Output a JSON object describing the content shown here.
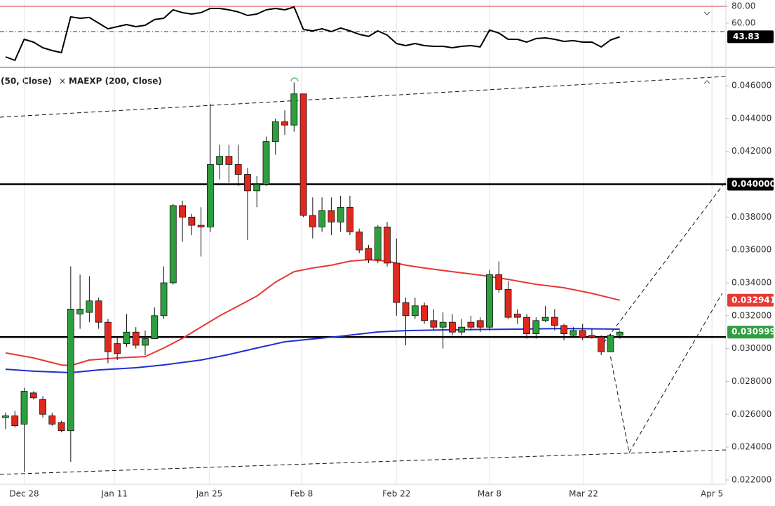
{
  "chart_data": [
    {
      "type": "line",
      "xlim": [
        -0.6,
        77.4
      ],
      "ylim": [
        8.3,
        87.5
      ],
      "yticks": [
        {
          "value": 80,
          "label": "80.00"
        },
        {
          "value": 60,
          "label": "60.00"
        }
      ],
      "levels": [
        {
          "value": 80,
          "color": "#e53935",
          "style": "solid"
        },
        {
          "value": 50,
          "color": "#333333",
          "style": "dashdot"
        }
      ],
      "series": [
        {
          "color": "#000000",
          "values": [
            20.0,
            15.8,
            40.8,
            37.5,
            30.8,
            27.5,
            25.0,
            67.5,
            65.8,
            66.7,
            60.0,
            53.3,
            55.8,
            58.3,
            55.8,
            57.5,
            64.2,
            65.8,
            75.8,
            72.5,
            70.8,
            72.5,
            77.5,
            77.5,
            75.8,
            73.3,
            69.2,
            70.8,
            75.8,
            77.5,
            75.8,
            79.2,
            52.5,
            50.8,
            53.3,
            50.0,
            54.2,
            50.8,
            46.7,
            44.2,
            50.8,
            45.8,
            35.8,
            33.3,
            35.8,
            33.3,
            32.5,
            32.5,
            30.8,
            32.5,
            33.3,
            31.7,
            51.7,
            48.3,
            40.8,
            40.8,
            37.5,
            41.7,
            42.5,
            40.8,
            38.3,
            39.2,
            37.5,
            37.5,
            31.7,
            40.0,
            43.83
          ]
        }
      ],
      "grid": true,
      "xticks": [
        2,
        11.7,
        21.9,
        31.8,
        42,
        52,
        62.1,
        75.9
      ]
    },
    {
      "type": "candlestick",
      "xlim": [
        -0.6,
        77.4
      ],
      "ylim": [
        0.02174,
        0.04707
      ],
      "xticks": [
        {
          "value": 2,
          "label": "Dec 28"
        },
        {
          "value": 11.7,
          "label": "Jan 11"
        },
        {
          "value": 21.9,
          "label": "Jan 25"
        },
        {
          "value": 31.8,
          "label": "Feb 8"
        },
        {
          "value": 42,
          "label": "Feb 22"
        },
        {
          "value": 52,
          "label": "Mar 8"
        },
        {
          "value": 62.1,
          "label": "Mar 22"
        },
        {
          "value": 75.9,
          "label": "Apr 5"
        }
      ],
      "yticks": [
        {
          "value": 0.022,
          "label": "0.022000"
        },
        {
          "value": 0.024,
          "label": "0.024000"
        },
        {
          "value": 0.026,
          "label": "0.026000"
        },
        {
          "value": 0.028,
          "label": "0.028000"
        },
        {
          "value": 0.03,
          "label": "0.030000"
        },
        {
          "value": 0.032,
          "label": "0.032000"
        },
        {
          "value": 0.034,
          "label": "0.034000"
        },
        {
          "value": 0.036,
          "label": "0.036000"
        },
        {
          "value": 0.038,
          "label": "0.038000"
        },
        {
          "value": 0.04,
          "label": "0.040000"
        },
        {
          "value": 0.042,
          "label": "0.042000"
        },
        {
          "value": 0.044,
          "label": "0.044000"
        },
        {
          "value": 0.046,
          "label": "0.046000"
        }
      ],
      "grid": true,
      "up_color": "#2e9e3e",
      "down_color": "#e0281e",
      "open": [
        0.0258,
        0.0259,
        0.0254,
        0.0273,
        0.0269,
        0.0259,
        0.0255,
        0.025,
        0.0321,
        0.0322,
        0.0329,
        0.0316,
        0.0303,
        0.0303,
        0.031,
        0.0302,
        0.0306,
        0.032,
        0.034,
        0.0387,
        0.038,
        0.0375,
        0.0374,
        0.0412,
        0.0417,
        0.0412,
        0.0406,
        0.0396,
        0.04,
        0.0426,
        0.0438,
        0.0436,
        0.0455,
        0.0381,
        0.0374,
        0.0384,
        0.0377,
        0.0386,
        0.0371,
        0.0361,
        0.0354,
        0.0374,
        0.0352,
        0.0328,
        0.032,
        0.0326,
        0.0317,
        0.0313,
        0.0316,
        0.031,
        0.0316,
        0.0317,
        0.0313,
        0.0345,
        0.0336,
        0.0321,
        0.0319,
        0.0309,
        0.0317,
        0.0319,
        0.0314,
        0.0308,
        0.0311,
        0.0308,
        0.0307,
        0.0298,
        0.0308
      ],
      "high": [
        0.0261,
        0.0262,
        0.0276,
        0.0274,
        0.0271,
        0.0261,
        0.0256,
        0.035,
        0.0345,
        0.0344,
        0.0331,
        0.0318,
        0.0307,
        0.0321,
        0.0313,
        0.0311,
        0.0325,
        0.035,
        0.0388,
        0.039,
        0.0382,
        0.0386,
        0.0449,
        0.0424,
        0.0424,
        0.0424,
        0.041,
        0.0405,
        0.0429,
        0.044,
        0.0445,
        0.0462,
        0.0455,
        0.0392,
        0.0392,
        0.0392,
        0.0393,
        0.0393,
        0.0373,
        0.0363,
        0.0375,
        0.0377,
        0.0367,
        0.0331,
        0.0331,
        0.0328,
        0.0324,
        0.0322,
        0.0321,
        0.0318,
        0.032,
        0.0319,
        0.0348,
        0.0353,
        0.0341,
        0.0324,
        0.0321,
        0.0319,
        0.0326,
        0.0324,
        0.0315,
        0.0313,
        0.0315,
        0.0312,
        0.0308,
        0.0309,
        0.0311
      ],
      "low": [
        0.0251,
        0.0252,
        0.0225,
        0.0269,
        0.0258,
        0.0253,
        0.0249,
        0.0231,
        0.0312,
        0.0316,
        0.0312,
        0.0291,
        0.0293,
        0.0301,
        0.03,
        0.0296,
        0.0306,
        0.0318,
        0.0339,
        0.0365,
        0.0369,
        0.0356,
        0.0371,
        0.0403,
        0.0401,
        0.0399,
        0.0366,
        0.0386,
        0.0399,
        0.0418,
        0.043,
        0.0432,
        0.038,
        0.0367,
        0.0371,
        0.0369,
        0.0371,
        0.0369,
        0.0358,
        0.0352,
        0.0352,
        0.035,
        0.032,
        0.0302,
        0.0318,
        0.0315,
        0.0311,
        0.03,
        0.0308,
        0.0308,
        0.0311,
        0.031,
        0.0311,
        0.0334,
        0.0318,
        0.0315,
        0.0306,
        0.0306,
        0.0316,
        0.0311,
        0.0305,
        0.0307,
        0.0305,
        0.0306,
        0.0296,
        0.0298,
        0.0306
      ],
      "close": [
        0.0259,
        0.0253,
        0.0274,
        0.027,
        0.026,
        0.0254,
        0.025,
        0.0324,
        0.0324,
        0.0329,
        0.0316,
        0.0298,
        0.0297,
        0.031,
        0.0302,
        0.0306,
        0.032,
        0.034,
        0.0387,
        0.038,
        0.0375,
        0.0374,
        0.0412,
        0.0417,
        0.0412,
        0.0406,
        0.0396,
        0.04,
        0.0426,
        0.0438,
        0.0436,
        0.0455,
        0.0381,
        0.0374,
        0.0384,
        0.0377,
        0.0386,
        0.0371,
        0.036,
        0.0354,
        0.0374,
        0.0352,
        0.0328,
        0.032,
        0.0326,
        0.0317,
        0.0313,
        0.0316,
        0.031,
        0.0313,
        0.0313,
        0.0313,
        0.0345,
        0.0336,
        0.0319,
        0.0319,
        0.0309,
        0.0317,
        0.0319,
        0.0314,
        0.0309,
        0.0311,
        0.0307,
        0.0307,
        0.0298,
        0.0308,
        0.030999
      ],
      "last_label": "0.030999",
      "last_color": "#2e9e3e",
      "series": [
        {
          "name": "(50, Close)",
          "color": "#e53935",
          "x": [
            0,
            3,
            6,
            7,
            9,
            12,
            15,
            17,
            19,
            21,
            23,
            25,
            27,
            29,
            31,
            33,
            35,
            37,
            39,
            41,
            43,
            45,
            48,
            51,
            54,
            57,
            60,
            63,
            66
          ],
          "values": [
            0.02973,
            0.02943,
            0.029,
            0.02896,
            0.0293,
            0.02943,
            0.02951,
            0.03003,
            0.03062,
            0.03131,
            0.03199,
            0.03259,
            0.03319,
            0.03404,
            0.03468,
            0.0349,
            0.03507,
            0.03532,
            0.03541,
            0.03532,
            0.03507,
            0.0349,
            0.03468,
            0.03447,
            0.03421,
            0.03391,
            0.0337,
            0.03336,
            0.032941
          ],
          "last_label": "0.032941"
        },
        {
          "name": "MAEXP (200, Close)",
          "color": "#1f2fd0",
          "x": [
            0,
            3,
            7,
            10,
            14,
            17,
            21,
            24,
            27,
            30,
            33,
            36,
            40,
            43,
            48,
            55,
            60,
            66
          ],
          "values": [
            0.02874,
            0.02862,
            0.02853,
            0.0287,
            0.02883,
            0.029,
            0.0293,
            0.02964,
            0.03003,
            0.03041,
            0.03058,
            0.03075,
            0.03101,
            0.03109,
            0.03114,
            0.03118,
            0.03122,
            0.03118
          ]
        }
      ],
      "levels": [
        {
          "value": 0.04,
          "label": "0.040000"
        },
        {
          "value": 0.0307
        }
      ],
      "trendlines": [
        {
          "x": [
            -0.6,
            77.4
          ],
          "values": [
            0.04408,
            0.04656
          ]
        },
        {
          "x": [
            -0.6,
            77.4
          ],
          "values": [
            0.02234,
            0.02383
          ]
        },
        {
          "x": [
            63.8,
            77.4
          ],
          "values": [
            0.03,
            0.04019
          ]
        },
        {
          "x": [
            65.0,
            67.0
          ],
          "values": [
            0.02951,
            0.02366
          ]
        },
        {
          "x": [
            67.0,
            77.0
          ],
          "values": [
            0.02366,
            0.03336
          ]
        }
      ]
    }
  ]
}
